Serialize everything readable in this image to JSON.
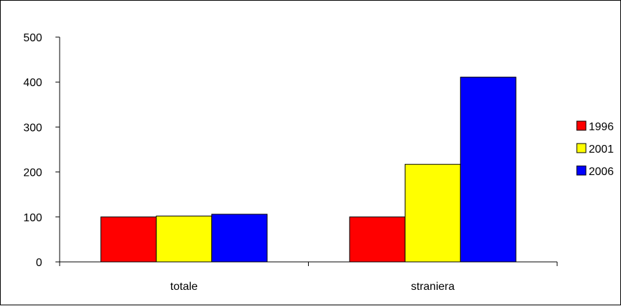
{
  "chart_data": {
    "type": "bar",
    "categories": [
      "totale",
      "straniera"
    ],
    "series": [
      {
        "name": "1996",
        "color": "#ff0000",
        "values": [
          100,
          100
        ]
      },
      {
        "name": "2001",
        "color": "#ffff00",
        "values": [
          102,
          217
        ]
      },
      {
        "name": "2006",
        "color": "#0000ff",
        "values": [
          106,
          411
        ]
      }
    ],
    "ylim": [
      0,
      500
    ],
    "yticks": [
      0,
      100,
      200,
      300,
      400,
      500
    ],
    "grid": false,
    "legend_position": "right",
    "title": "",
    "xlabel": "",
    "ylabel": ""
  }
}
